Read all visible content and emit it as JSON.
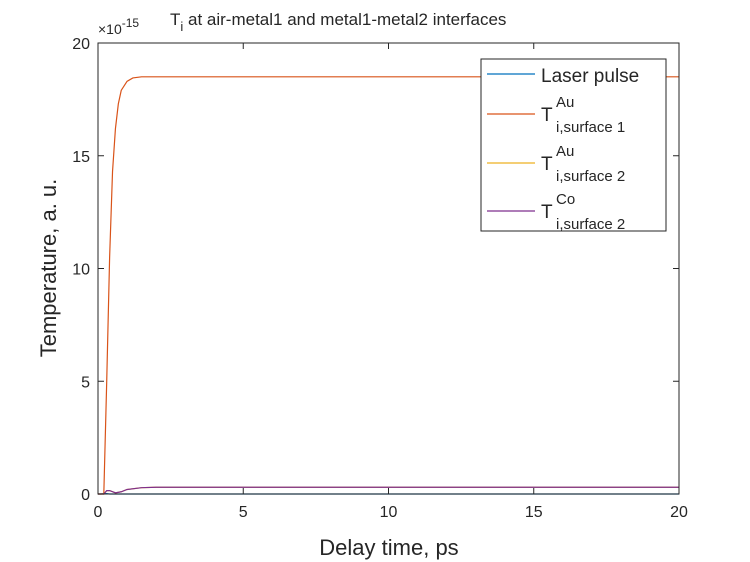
{
  "chart_data": {
    "type": "line",
    "title": {
      "main": "T",
      "sub": "i",
      "rest": " at air-metal1 and metal1-metal2 interfaces"
    },
    "xlabel": "Delay time, ps",
    "ylabel": "Temperature, a. u.",
    "y_exponent": {
      "base": "×10",
      "power": "-15"
    },
    "xlim": [
      0,
      20
    ],
    "ylim": [
      0,
      20
    ],
    "x_ticks": [
      0,
      5,
      10,
      15,
      20
    ],
    "y_ticks": [
      0,
      5,
      10,
      15,
      20
    ],
    "grid": false,
    "legend_position": "top-right",
    "series": [
      {
        "name": "Laser pulse",
        "legend": {
          "main": "Laser pulse",
          "sub": "",
          "sup": ""
        },
        "color": "#0072BD",
        "x": [
          0,
          0.1,
          0.2,
          0.3,
          0.4,
          0.5,
          20
        ],
        "y": [
          0,
          0,
          0.02,
          0.02,
          0,
          0,
          0
        ]
      },
      {
        "name": "T_i,surface 1^Au",
        "legend": {
          "main": "T",
          "sub": "i,surface 1",
          "sup": "Au"
        },
        "color": "#D95319",
        "x": [
          0,
          0.2,
          0.3,
          0.4,
          0.5,
          0.6,
          0.7,
          0.8,
          1.0,
          1.2,
          1.5,
          2.0,
          2.5,
          3.0,
          20
        ],
        "y": [
          0,
          0,
          5,
          10.5,
          14.3,
          16.2,
          17.3,
          17.9,
          18.3,
          18.45,
          18.5,
          18.5,
          18.5,
          18.5,
          18.5
        ]
      },
      {
        "name": "T_i,surface 2^Au",
        "legend": {
          "main": "T",
          "sub": "i,surface 2",
          "sup": "Au"
        },
        "color": "#EDB120",
        "x": [
          0,
          0.2,
          0.3,
          0.4,
          0.6,
          0.8,
          1.0,
          1.5,
          2.0,
          20
        ],
        "y": [
          0,
          0,
          0.15,
          0.15,
          0.05,
          0.1,
          0.2,
          0.28,
          0.3,
          0.3
        ]
      },
      {
        "name": "T_i,surface 2^Co",
        "legend": {
          "main": "T",
          "sub": "i,surface 2",
          "sup": "Co"
        },
        "color": "#7E2F8E",
        "x": [
          0,
          0.2,
          0.3,
          0.4,
          0.6,
          0.8,
          1.0,
          1.5,
          2.0,
          20
        ],
        "y": [
          0,
          0,
          0.15,
          0.15,
          0.05,
          0.1,
          0.2,
          0.28,
          0.3,
          0.3
        ]
      }
    ]
  }
}
